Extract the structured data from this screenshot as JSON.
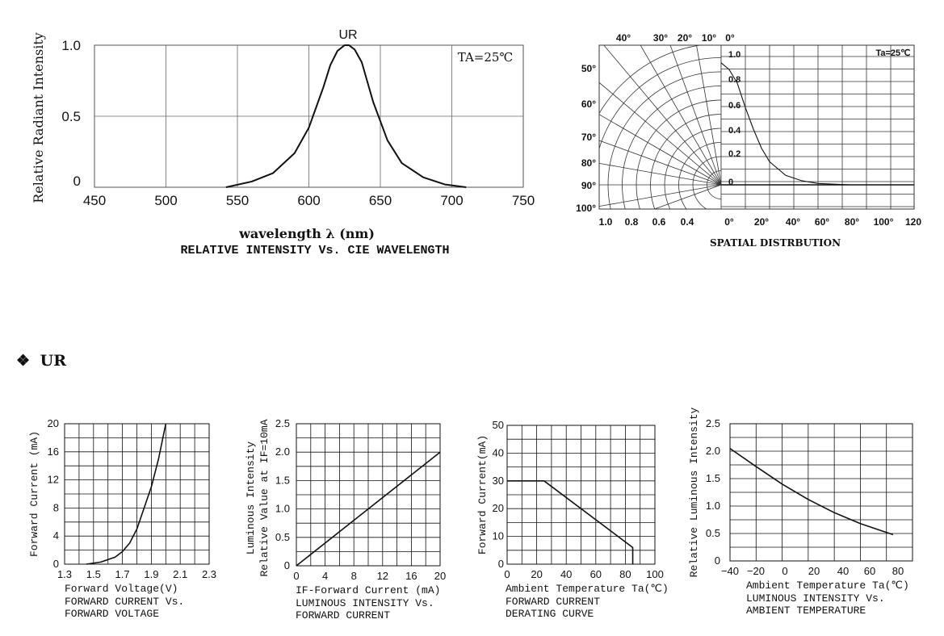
{
  "section": {
    "bullet": "❖",
    "title": "UR"
  },
  "chart_data": [
    {
      "type": "line",
      "title": "UR",
      "caption": "RELATIVE INTENSITY Vs. CIE WAVELENGTH",
      "xlabel": "wavelength λ  (nm)",
      "ylabel": "Relative  Radiant  Intensity",
      "annotation": "TA=25℃",
      "xlim": [
        450,
        750
      ],
      "ylim": [
        0,
        1.0
      ],
      "xticks": [
        450,
        500,
        550,
        600,
        650,
        700,
        750
      ],
      "yticks": [
        0,
        0.5,
        1.0
      ],
      "ytick_labels": [
        "0",
        "0.5",
        "1.0"
      ],
      "grid": true,
      "series": [
        {
          "x": [
            542,
            560,
            575,
            590,
            600,
            610,
            615,
            620,
            625,
            628,
            632,
            637,
            645,
            655,
            665,
            680,
            695,
            710
          ],
          "y": [
            0.0,
            0.04,
            0.1,
            0.24,
            0.42,
            0.7,
            0.86,
            0.96,
            1.0,
            1.0,
            0.97,
            0.88,
            0.6,
            0.33,
            0.17,
            0.07,
            0.02,
            0.0
          ]
        }
      ]
    },
    {
      "type": "polar",
      "caption": "SPATIAL DISTRBUTION",
      "annotation": "Ta=25℃",
      "angle_labels_top": [
        "40°",
        "30°",
        "20°",
        "10°",
        "0°"
      ],
      "angle_labels_left": [
        "50°",
        "60°",
        "70°",
        "80°",
        "90°",
        "100°"
      ],
      "radial_labels": [
        "1.0",
        "0.8",
        "0.6",
        "0.4",
        "0.2",
        "0"
      ],
      "xticks_left": [
        "1.0",
        "0.8",
        "0.6",
        "0.4"
      ],
      "xticks_right": [
        "0°",
        "20°",
        "40°",
        "60°",
        "80°",
        "100°",
        "120"
      ],
      "series": [
        {
          "angle_deg": [
            0,
            5,
            10,
            15,
            20,
            25,
            30,
            40,
            50,
            60,
            70,
            80,
            90
          ],
          "y": [
            0.9,
            0.85,
            0.75,
            0.57,
            0.41,
            0.27,
            0.17,
            0.07,
            0.03,
            0.01,
            0.005,
            0.0,
            0.0
          ]
        }
      ]
    },
    {
      "type": "line",
      "xlabel": "Forward  Voltage(V)",
      "ylabel": "Forward  Current  (mA)",
      "caption1": "FORWARD  CURRENT  Vs.",
      "caption2": "FORWARD  VOLTAGE",
      "xlim": [
        1.3,
        2.3
      ],
      "ylim": [
        0,
        20
      ],
      "xticks": [
        "1.3",
        "1.5",
        "1.7",
        "1.9",
        "2.1",
        "2.3"
      ],
      "yticks": [
        "0",
        "4",
        "8",
        "12",
        "16",
        "20"
      ],
      "grid": true,
      "series": [
        {
          "x": [
            1.45,
            1.55,
            1.65,
            1.7,
            1.75,
            1.8,
            1.85,
            1.9,
            1.95,
            2.0
          ],
          "y": [
            0.0,
            0.3,
            1.0,
            1.8,
            3.0,
            5.0,
            8.0,
            11.0,
            15.0,
            20.0
          ]
        }
      ]
    },
    {
      "type": "line",
      "xlabel": "IF-Forward  Current  (mA)",
      "ylabel1": "Luminous  Intensity",
      "ylabel2": "Relative  Value  at  IF=10mA",
      "caption1": "LUMINOUS  INTENSITY  Vs.",
      "caption2": "FORWARD  CURRENT",
      "xlim": [
        0,
        20
      ],
      "ylim": [
        0,
        2.5
      ],
      "xticks": [
        "0",
        "4",
        "8",
        "12",
        "16",
        "20"
      ],
      "yticks": [
        "0",
        "0.5",
        "1.0",
        "1.5",
        "2.0",
        "2.5"
      ],
      "grid": true,
      "series": [
        {
          "x": [
            0,
            20
          ],
          "y": [
            0,
            2.0
          ]
        }
      ]
    },
    {
      "type": "line",
      "xlabel": "Ambient  Temperature  Ta(℃)",
      "ylabel": "Forward  Current(mA)",
      "caption1": "FORWARD  CURRENT",
      "caption2": "DERATING  CURVE",
      "xlim": [
        0,
        100
      ],
      "ylim": [
        0,
        50
      ],
      "xticks": [
        "0",
        "20",
        "40",
        "60",
        "80",
        "100"
      ],
      "yticks": [
        "0",
        "10",
        "20",
        "30",
        "40",
        "50"
      ],
      "grid": true,
      "series": [
        {
          "x": [
            0,
            25,
            85,
            85
          ],
          "y": [
            30,
            30,
            6,
            0
          ]
        }
      ]
    },
    {
      "type": "line",
      "xlabel": "Ambient  Temperature  Ta(℃)",
      "ylabel": "Relative  Luminous  Intensity",
      "caption1": "LUMINOUS  INTENSITY  Vs.",
      "caption2": "AMBIENT  TEMPERATURE",
      "xlim": [
        -40,
        100
      ],
      "ylim": [
        0,
        2.5
      ],
      "xticks": [
        "−40",
        "−20",
        "0",
        "20",
        "40",
        "60",
        "80"
      ],
      "yticks": [
        "0",
        "0.5",
        "1.0",
        "1.5",
        "2.0",
        "2.5"
      ],
      "grid": true,
      "series": [
        {
          "x": [
            -40,
            -20,
            0,
            20,
            40,
            60,
            85
          ],
          "y": [
            2.05,
            1.72,
            1.4,
            1.12,
            0.88,
            0.68,
            0.48
          ]
        }
      ]
    }
  ]
}
